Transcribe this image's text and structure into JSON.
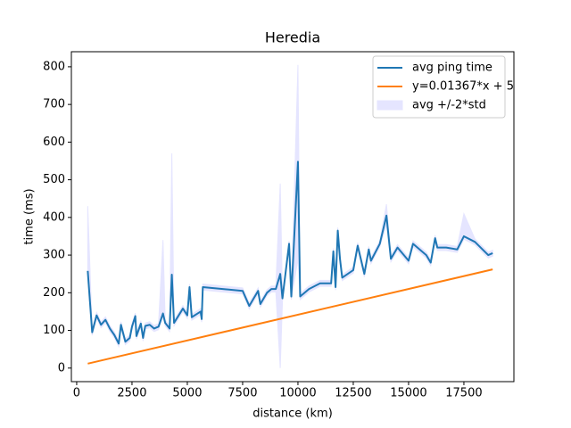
{
  "chart_data": {
    "type": "line",
    "title": "Heredia",
    "x_label": "distance (km)",
    "y_label": "time (ms)",
    "xlim": [
      -240,
      19760
    ],
    "ylim": [
      -36,
      840
    ],
    "xticks": [
      0,
      2500,
      5000,
      7500,
      10000,
      12500,
      15000,
      17500
    ],
    "yticks": [
      0,
      100,
      200,
      300,
      400,
      500,
      600,
      700,
      800
    ],
    "legend": "upper right",
    "series": [
      {
        "name": "avg ping time",
        "color": "#1f77b4",
        "x": [
          500,
          700,
          900,
          1100,
          1300,
          1500,
          1700,
          1900,
          2000,
          2200,
          2400,
          2500,
          2650,
          2700,
          2900,
          3000,
          3100,
          3300,
          3500,
          3700,
          3900,
          4000,
          4200,
          4300,
          4400,
          4800,
          5000,
          5100,
          5200,
          5600,
          5650,
          5700,
          7500,
          7800,
          8000,
          8200,
          8300,
          8600,
          8800,
          9000,
          9200,
          9300,
          9600,
          9700,
          10000,
          10100,
          10500,
          11000,
          11500,
          11600,
          11700,
          11800,
          11900,
          12000,
          12500,
          12700,
          12900,
          13000,
          13200,
          13300,
          13700,
          14000,
          14200,
          14500,
          15000,
          15200,
          15800,
          16000,
          16200,
          16300,
          16700,
          17200,
          17500,
          18000,
          18600,
          18800
        ],
        "values": [
          258,
          95,
          140,
          115,
          128,
          105,
          88,
          65,
          115,
          70,
          80,
          110,
          138,
          85,
          118,
          80,
          112,
          115,
          105,
          110,
          145,
          120,
          105,
          248,
          120,
          158,
          140,
          215,
          135,
          150,
          130,
          215,
          205,
          165,
          185,
          205,
          170,
          200,
          210,
          210,
          250,
          185,
          330,
          190,
          548,
          190,
          210,
          225,
          225,
          310,
          215,
          365,
          290,
          240,
          260,
          325,
          275,
          250,
          315,
          285,
          330,
          405,
          290,
          320,
          285,
          330,
          300,
          280,
          345,
          320,
          320,
          315,
          350,
          335,
          300,
          305
        ]
      },
      {
        "name": "y=0.01367*x + 5",
        "color": "#ff7f0e",
        "x": [
          500,
          18800
        ],
        "values": [
          11.835,
          261.996
        ]
      },
      {
        "name": "avg +/-2*std",
        "color": "#e5e5ff",
        "band": true,
        "x": [
          500,
          700,
          900,
          1100,
          1300,
          1500,
          1700,
          1900,
          2000,
          2200,
          2400,
          2500,
          2650,
          2700,
          2900,
          3000,
          3100,
          3300,
          3500,
          3700,
          3900,
          4000,
          4200,
          4300,
          4400,
          4800,
          5000,
          5100,
          5200,
          5600,
          5650,
          5700,
          7500,
          7800,
          8000,
          8200,
          8300,
          8600,
          8800,
          9000,
          9200,
          9300,
          9600,
          9700,
          10000,
          10100,
          10500,
          11000,
          11500,
          11600,
          11700,
          11800,
          11900,
          12000,
          12500,
          12700,
          12900,
          13000,
          13200,
          13300,
          13700,
          14000,
          14200,
          14500,
          15000,
          15200,
          15800,
          16000,
          16200,
          16300,
          16700,
          17200,
          17500,
          18000,
          18600,
          18800
        ],
        "upper": [
          430,
          103,
          148,
          123,
          136,
          113,
          96,
          73,
          123,
          78,
          88,
          118,
          146,
          93,
          126,
          88,
          120,
          123,
          113,
          118,
          340,
          128,
          113,
          570,
          128,
          166,
          148,
          223,
          143,
          158,
          138,
          223,
          213,
          173,
          193,
          213,
          178,
          208,
          218,
          218,
          490,
          193,
          338,
          198,
          805,
          198,
          218,
          233,
          233,
          318,
          223,
          373,
          298,
          248,
          268,
          333,
          283,
          258,
          323,
          293,
          338,
          435,
          298,
          328,
          293,
          338,
          308,
          288,
          353,
          328,
          328,
          323,
          410,
          343,
          308,
          313
        ],
        "lower": [
          240,
          87,
          132,
          107,
          120,
          97,
          80,
          57,
          107,
          62,
          72,
          102,
          130,
          77,
          110,
          72,
          104,
          107,
          97,
          102,
          137,
          112,
          97,
          230,
          112,
          150,
          132,
          207,
          127,
          142,
          122,
          207,
          197,
          157,
          177,
          197,
          162,
          192,
          202,
          202,
          0,
          177,
          322,
          182,
          290,
          182,
          202,
          217,
          217,
          302,
          207,
          357,
          282,
          232,
          252,
          317,
          267,
          242,
          307,
          277,
          322,
          380,
          282,
          312,
          277,
          322,
          292,
          272,
          337,
          312,
          312,
          307,
          342,
          327,
          292,
          297
        ]
      }
    ]
  }
}
